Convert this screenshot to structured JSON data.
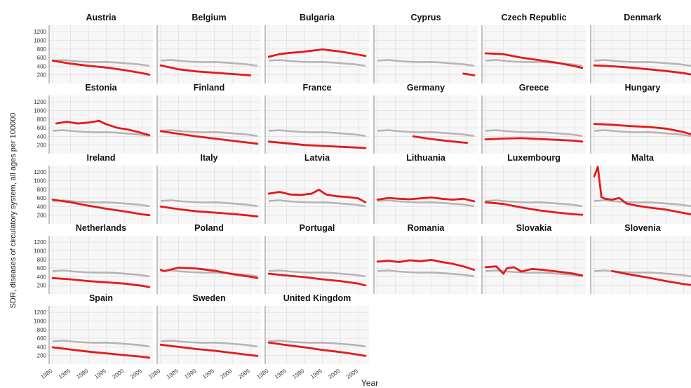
{
  "chart_data": {
    "type": "line",
    "layout": "small-multiples",
    "ylabel": "SDR, diseases of circulatory system, all ages per 100000",
    "xlabel": "Year",
    "yticks": [
      200,
      400,
      600,
      800,
      1000,
      1200
    ],
    "ylim": [
      0,
      1350
    ],
    "xticks": [
      1980,
      1985,
      1990,
      1995,
      2000,
      2005
    ],
    "xlim": [
      1979,
      2008
    ],
    "grid": true,
    "colors": {
      "country": "#e31a1c",
      "reference": "#b5b5b5"
    },
    "reference_series": {
      "x": [
        1980,
        1983,
        1986,
        1989,
        1992,
        1995,
        1998,
        2001,
        2004,
        2007
      ],
      "values": [
        530,
        545,
        520,
        505,
        495,
        500,
        485,
        465,
        445,
        410
      ]
    },
    "panels": [
      {
        "name": "Austria",
        "x": [
          1980,
          1985,
          1990,
          1995,
          2000,
          2005,
          2007
        ],
        "values": [
          530,
          460,
          410,
          370,
          310,
          240,
          205
        ]
      },
      {
        "name": "Belgium",
        "x": [
          1980,
          1985,
          1990,
          1995,
          2000,
          2005
        ],
        "values": [
          420,
          330,
          280,
          250,
          220,
          190
        ]
      },
      {
        "name": "Bulgaria",
        "x": [
          1980,
          1983,
          1986,
          1989,
          1992,
          1995,
          1997,
          2000,
          2003,
          2007
        ],
        "values": [
          620,
          680,
          710,
          730,
          760,
          790,
          770,
          740,
          700,
          640
        ]
      },
      {
        "name": "Cyprus",
        "x": [
          2004,
          2007
        ],
        "values": [
          230,
          190
        ]
      },
      {
        "name": "Czech Republic",
        "x": [
          1980,
          1985,
          1990,
          1995,
          2000,
          2005,
          2007
        ],
        "values": [
          700,
          680,
          600,
          540,
          480,
          400,
          360
        ]
      },
      {
        "name": "Denmark",
        "x": [
          1980,
          1985,
          1990,
          1995,
          2000,
          2005,
          2007
        ],
        "values": [
          420,
          400,
          370,
          330,
          290,
          240,
          210
        ]
      },
      {
        "name": "Estonia",
        "x": [
          1981,
          1984,
          1987,
          1990,
          1993,
          1995,
          1998,
          2001,
          2004,
          2007
        ],
        "values": [
          700,
          740,
          700,
          720,
          760,
          680,
          600,
          560,
          500,
          430
        ]
      },
      {
        "name": "Finland",
        "x": [
          1980,
          1985,
          1990,
          1995,
          2000,
          2005,
          2007
        ],
        "values": [
          520,
          460,
          400,
          350,
          300,
          250,
          230
        ]
      },
      {
        "name": "France",
        "x": [
          1980,
          1985,
          1990,
          1995,
          2000,
          2005,
          2007
        ],
        "values": [
          280,
          240,
          200,
          180,
          160,
          140,
          130
        ]
      },
      {
        "name": "Germany",
        "x": [
          1990,
          1995,
          2000,
          2005
        ],
        "values": [
          400,
          340,
          290,
          250
        ]
      },
      {
        "name": "Greece",
        "x": [
          1980,
          1985,
          1990,
          1995,
          2000,
          2005,
          2007
        ],
        "values": [
          330,
          350,
          360,
          340,
          320,
          300,
          280
        ]
      },
      {
        "name": "Hungary",
        "x": [
          1980,
          1985,
          1990,
          1995,
          2000,
          2005,
          2007
        ],
        "values": [
          690,
          670,
          640,
          620,
          580,
          500,
          450
        ]
      },
      {
        "name": "Ireland",
        "x": [
          1980,
          1985,
          1990,
          1995,
          2000,
          2005,
          2007
        ],
        "values": [
          560,
          500,
          420,
          350,
          290,
          220,
          200
        ]
      },
      {
        "name": "Italy",
        "x": [
          1980,
          1985,
          1990,
          1995,
          2000,
          2005,
          2007
        ],
        "values": [
          400,
          340,
          290,
          260,
          230,
          190,
          170
        ]
      },
      {
        "name": "Latvia",
        "x": [
          1980,
          1983,
          1986,
          1989,
          1992,
          1994,
          1996,
          1999,
          2002,
          2005,
          2007
        ],
        "values": [
          700,
          740,
          680,
          670,
          700,
          790,
          680,
          640,
          620,
          590,
          500
        ]
      },
      {
        "name": "Lithuania",
        "x": [
          1980,
          1983,
          1986,
          1989,
          1992,
          1995,
          1998,
          2001,
          2004,
          2007
        ],
        "values": [
          560,
          600,
          580,
          570,
          590,
          610,
          580,
          560,
          580,
          520
        ]
      },
      {
        "name": "Luxembourg",
        "x": [
          1980,
          1985,
          1990,
          1995,
          2000,
          2005,
          2007
        ],
        "values": [
          500,
          460,
          380,
          310,
          260,
          220,
          210
        ]
      },
      {
        "name": "Malta",
        "x": [
          1980,
          1981,
          1982,
          1983,
          1985,
          1987,
          1989,
          1992,
          1995,
          2000,
          2005,
          2007
        ],
        "values": [
          1100,
          1320,
          620,
          580,
          560,
          600,
          470,
          420,
          380,
          330,
          250,
          220
        ]
      },
      {
        "name": "Netherlands",
        "x": [
          1980,
          1985,
          1990,
          1995,
          2000,
          2005,
          2007
        ],
        "values": [
          370,
          340,
          300,
          270,
          240,
          190,
          160
        ]
      },
      {
        "name": "Poland",
        "x": [
          1980,
          1981,
          1985,
          1990,
          1995,
          2000,
          2005,
          2007
        ],
        "values": [
          560,
          530,
          610,
          590,
          540,
          460,
          400,
          370
        ]
      },
      {
        "name": "Portugal",
        "x": [
          1980,
          1985,
          1990,
          1995,
          2000,
          2005,
          2007
        ],
        "values": [
          470,
          430,
          390,
          340,
          300,
          240,
          200
        ]
      },
      {
        "name": "Romania",
        "x": [
          1980,
          1983,
          1986,
          1989,
          1992,
          1995,
          1998,
          2001,
          2004,
          2007
        ],
        "values": [
          750,
          770,
          740,
          780,
          760,
          790,
          740,
          700,
          640,
          560
        ]
      },
      {
        "name": "Slovakia",
        "x": [
          1980,
          1983,
          1985,
          1986,
          1988,
          1990,
          1993,
          1996,
          2000,
          2004,
          2007
        ],
        "values": [
          620,
          640,
          470,
          600,
          620,
          520,
          580,
          560,
          520,
          480,
          430
        ]
      },
      {
        "name": "Slovenia",
        "x": [
          1985,
          1990,
          1995,
          2000,
          2005,
          2007
        ],
        "values": [
          530,
          450,
          380,
          300,
          230,
          210
        ]
      },
      {
        "name": "Spain",
        "x": [
          1980,
          1985,
          1990,
          1995,
          2000,
          2005,
          2007
        ],
        "values": [
          390,
          340,
          290,
          250,
          210,
          170,
          150
        ]
      },
      {
        "name": "Sweden",
        "x": [
          1980,
          1985,
          1990,
          1995,
          2000,
          2005,
          2007
        ],
        "values": [
          450,
          400,
          350,
          310,
          260,
          210,
          190
        ]
      },
      {
        "name": "United Kingdom",
        "x": [
          1980,
          1985,
          1990,
          1995,
          2000,
          2005,
          2007
        ],
        "values": [
          500,
          440,
          390,
          330,
          280,
          220,
          190
        ]
      }
    ]
  }
}
